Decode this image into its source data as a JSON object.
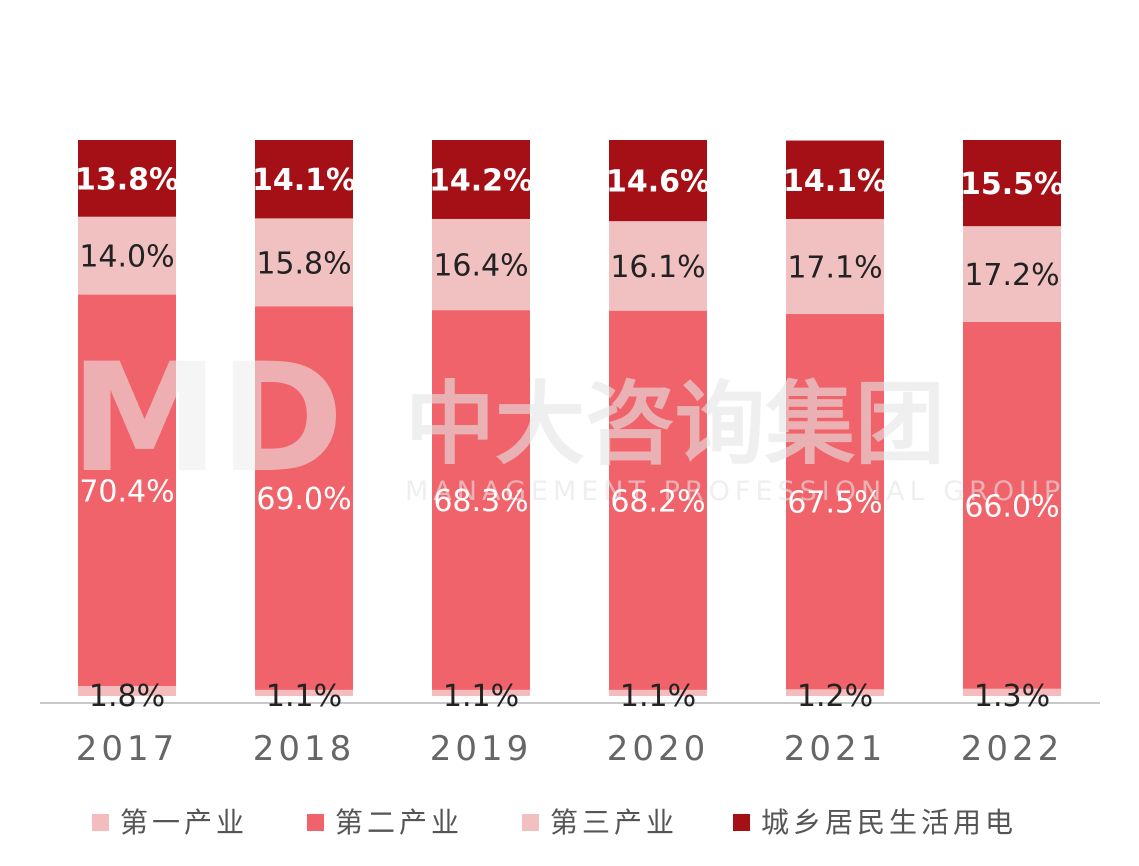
{
  "chart_data": {
    "type": "bar",
    "stacked": true,
    "normalized_percent": true,
    "categories": [
      "2017",
      "2018",
      "2019",
      "2020",
      "2021",
      "2022"
    ],
    "series": [
      {
        "name": "第一产业",
        "values": [
          1.8,
          1.1,
          1.1,
          1.1,
          1.2,
          1.3
        ],
        "labels": [
          "1.8%",
          "1.1%",
          "1.1%",
          "1.1%",
          "1.2%",
          "1.3%"
        ],
        "color": "#f4bcbc"
      },
      {
        "name": "第二产业",
        "values": [
          70.4,
          69.0,
          68.3,
          68.2,
          67.5,
          66.0
        ],
        "labels": [
          "70.4%",
          "69.0%",
          "68.3%",
          "68.2%",
          "67.5%",
          "66.0%"
        ],
        "color": "#f0636a"
      },
      {
        "name": "第三产业",
        "values": [
          14.0,
          15.8,
          16.4,
          16.1,
          17.1,
          17.2
        ],
        "labels": [
          "14.0%",
          "15.8%",
          "16.4%",
          "16.1%",
          "17.1%",
          "17.2%"
        ],
        "color": "#f1c1c1"
      },
      {
        "name": "城乡居民生活用电",
        "values": [
          13.8,
          14.1,
          14.2,
          14.6,
          14.1,
          15.5
        ],
        "labels": [
          "13.8%",
          "14.1%",
          "14.2%",
          "14.6%",
          "14.1%",
          "15.5%"
        ],
        "color": "#a50f16"
      }
    ],
    "title": "",
    "xlabel": "",
    "ylabel": "",
    "ylim": [
      0,
      100
    ],
    "grid": false,
    "legend_position": "bottom"
  },
  "watermark": {
    "logo": "MD",
    "name": "中大咨询集团",
    "subtitle": "MANAGEMENT PROFESSIONAL GROUP"
  }
}
